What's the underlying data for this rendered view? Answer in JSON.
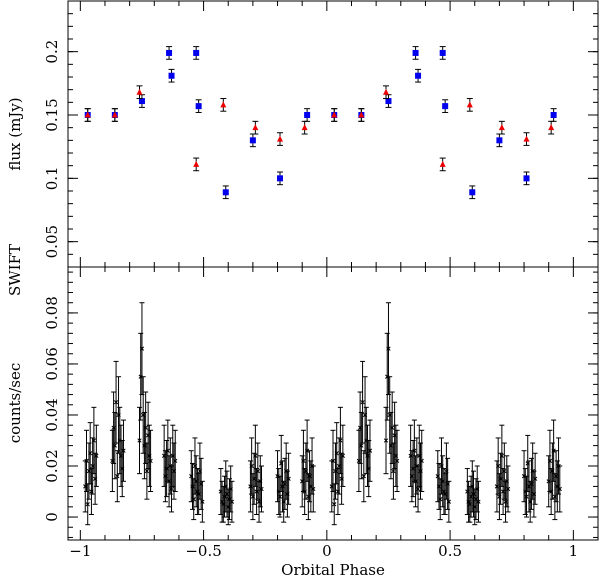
{
  "chart_data": [
    {
      "type": "scatter",
      "panel": "top",
      "ylabel": "flux (mJy)",
      "ylim": [
        0.03,
        0.24
      ],
      "yticks": [
        0.05,
        0.1,
        0.15,
        0.2
      ],
      "ytick_labels": [
        "0.05",
        "0.1",
        "0.15",
        "0.2"
      ],
      "xlim": [
        -1.05,
        1.1
      ],
      "series": [
        {
          "name": "blue squares",
          "color": "#0000ee",
          "marker": "square",
          "x": [
            -0.97,
            -0.86,
            -0.75,
            -0.64,
            -0.63,
            -0.53,
            -0.52,
            -0.41,
            -0.3,
            -0.19,
            -0.08,
            0.03,
            0.14,
            0.25,
            0.36,
            0.37,
            0.47,
            0.48,
            0.59,
            0.7,
            0.81,
            0.92
          ],
          "y": [
            0.15,
            0.15,
            0.161,
            0.199,
            0.181,
            0.199,
            0.157,
            0.089,
            0.13,
            0.1,
            0.15,
            0.15,
            0.15,
            0.161,
            0.199,
            0.181,
            0.199,
            0.157,
            0.089,
            0.13,
            0.1,
            0.15
          ],
          "err": 0.005
        },
        {
          "name": "red triangles",
          "color": "#ee0000",
          "marker": "triangle",
          "x": [
            -0.97,
            -0.86,
            -0.76,
            -0.53,
            -0.42,
            -0.29,
            -0.19,
            -0.09,
            0.03,
            0.14,
            0.24,
            0.47,
            0.58,
            0.71,
            0.81,
            0.91
          ],
          "y": [
            0.15,
            0.15,
            0.168,
            0.111,
            0.158,
            0.14,
            0.131,
            0.14,
            0.15,
            0.15,
            0.168,
            0.111,
            0.158,
            0.14,
            0.131,
            0.14
          ],
          "err": 0.005
        }
      ]
    },
    {
      "type": "scatter",
      "panel": "bottom",
      "panel_label": "SWIFT",
      "xlabel": "Orbital Phase",
      "ylabel": "counts/sec",
      "ylim": [
        -0.009,
        0.098
      ],
      "yticks": [
        0,
        0.02,
        0.04,
        0.06,
        0.08
      ],
      "ytick_labels": [
        "0",
        "0.02",
        "0.04",
        "0.06",
        "0.08"
      ],
      "xlim": [
        -1.05,
        1.1
      ],
      "xticks": [
        -1,
        -0.5,
        0,
        0.5,
        1
      ],
      "xtick_labels": [
        "−1",
        "−0.5",
        "0",
        "0.5",
        "1"
      ],
      "series": [
        {
          "name": "SWIFT count rate",
          "color": "#000000",
          "marker": "x",
          "x": [
            -0.98,
            -0.975,
            -0.97,
            -0.965,
            -0.96,
            -0.955,
            -0.95,
            -0.945,
            -0.94,
            -0.935,
            -0.87,
            -0.865,
            -0.86,
            -0.855,
            -0.85,
            -0.845,
            -0.84,
            -0.835,
            -0.83,
            -0.825,
            -0.76,
            -0.755,
            -0.75,
            -0.745,
            -0.74,
            -0.735,
            -0.73,
            -0.725,
            -0.72,
            -0.715,
            -0.66,
            -0.655,
            -0.65,
            -0.645,
            -0.64,
            -0.635,
            -0.63,
            -0.625,
            -0.62,
            -0.615,
            -0.55,
            -0.545,
            -0.54,
            -0.535,
            -0.53,
            -0.525,
            -0.52,
            -0.515,
            -0.51,
            -0.505,
            -0.43,
            -0.425,
            -0.42,
            -0.415,
            -0.41,
            -0.405,
            -0.4,
            -0.395,
            -0.39,
            -0.385,
            -0.31,
            -0.305,
            -0.3,
            -0.295,
            -0.29,
            -0.285,
            -0.28,
            -0.275,
            -0.27,
            -0.265,
            -0.2,
            -0.195,
            -0.19,
            -0.185,
            -0.18,
            -0.175,
            -0.17,
            -0.165,
            -0.16,
            -0.155,
            -0.1,
            -0.095,
            -0.09,
            -0.085,
            -0.08,
            -0.075,
            -0.07,
            -0.065,
            -0.06,
            -0.055,
            0.02,
            0.025,
            0.03,
            0.035,
            0.04,
            0.045,
            0.05,
            0.055,
            0.06,
            0.065,
            0.13,
            0.135,
            0.14,
            0.145,
            0.15,
            0.155,
            0.16,
            0.165,
            0.17,
            0.175,
            0.24,
            0.245,
            0.25,
            0.255,
            0.26,
            0.265,
            0.27,
            0.275,
            0.28,
            0.285,
            0.34,
            0.345,
            0.35,
            0.355,
            0.36,
            0.365,
            0.37,
            0.375,
            0.38,
            0.385,
            0.45,
            0.455,
            0.46,
            0.465,
            0.47,
            0.475,
            0.48,
            0.485,
            0.49,
            0.495,
            0.57,
            0.575,
            0.58,
            0.585,
            0.59,
            0.595,
            0.6,
            0.605,
            0.61,
            0.615,
            0.69,
            0.695,
            0.7,
            0.705,
            0.71,
            0.715,
            0.72,
            0.725,
            0.73,
            0.735,
            0.8,
            0.805,
            0.81,
            0.815,
            0.82,
            0.825,
            0.83,
            0.835,
            0.84,
            0.845,
            0.9,
            0.905,
            0.91,
            0.915,
            0.92,
            0.925,
            0.93,
            0.935,
            0.94,
            0.945
          ],
          "y": [
            0.012,
            0.022,
            0.005,
            0.018,
            0.025,
            0.01,
            0.02,
            0.03,
            0.015,
            0.024,
            0.022,
            0.035,
            0.028,
            0.045,
            0.016,
            0.04,
            0.03,
            0.024,
            0.019,
            0.026,
            0.03,
            0.055,
            0.066,
            0.04,
            0.028,
            0.035,
            0.018,
            0.032,
            0.024,
            0.022,
            0.024,
            0.016,
            0.019,
            0.026,
            0.014,
            0.02,
            0.011,
            0.024,
            0.018,
            0.022,
            0.016,
            0.012,
            0.007,
            0.02,
            0.014,
            0.01,
            0.009,
            0.018,
            0.013,
            0.006,
            0.01,
            0.006,
            0.005,
            0.008,
            0.012,
            0.009,
            0.004,
            0.007,
            0.011,
            0.006,
            0.012,
            0.02,
            0.008,
            0.015,
            0.024,
            0.01,
            0.018,
            0.006,
            0.014,
            0.011,
            0.016,
            0.01,
            0.008,
            0.021,
            0.012,
            0.006,
            0.013,
            0.018,
            0.009,
            0.015,
            0.014,
            0.022,
            0.01,
            0.018,
            0.026,
            0.008,
            0.016,
            0.012,
            0.02,
            0.011,
            0.012,
            0.022,
            0.005,
            0.018,
            0.025,
            0.01,
            0.02,
            0.03,
            0.015,
            0.024,
            0.022,
            0.035,
            0.028,
            0.045,
            0.016,
            0.04,
            0.03,
            0.024,
            0.019,
            0.026,
            0.03,
            0.055,
            0.066,
            0.04,
            0.028,
            0.035,
            0.018,
            0.032,
            0.024,
            0.022,
            0.024,
            0.016,
            0.019,
            0.026,
            0.014,
            0.02,
            0.011,
            0.024,
            0.018,
            0.022,
            0.016,
            0.012,
            0.007,
            0.02,
            0.014,
            0.01,
            0.009,
            0.018,
            0.013,
            0.006,
            0.01,
            0.006,
            0.005,
            0.008,
            0.012,
            0.009,
            0.004,
            0.007,
            0.011,
            0.006,
            0.012,
            0.02,
            0.008,
            0.015,
            0.024,
            0.01,
            0.018,
            0.006,
            0.014,
            0.011,
            0.016,
            0.01,
            0.008,
            0.021,
            0.012,
            0.006,
            0.013,
            0.018,
            0.009,
            0.015,
            0.014,
            0.022,
            0.01,
            0.018,
            0.026,
            0.008,
            0.016,
            0.012,
            0.02,
            0.011
          ],
          "err": [
            0.01,
            0.012,
            0.008,
            0.011,
            0.012,
            0.009,
            0.011,
            0.013,
            0.01,
            0.012,
            0.012,
            0.014,
            0.013,
            0.016,
            0.01,
            0.015,
            0.013,
            0.012,
            0.011,
            0.012,
            0.013,
            0.017,
            0.018,
            0.015,
            0.013,
            0.014,
            0.011,
            0.013,
            0.012,
            0.012,
            0.012,
            0.01,
            0.011,
            0.012,
            0.01,
            0.011,
            0.009,
            0.012,
            0.011,
            0.012,
            0.01,
            0.009,
            0.008,
            0.011,
            0.01,
            0.009,
            0.008,
            0.011,
            0.01,
            0.008,
            0.009,
            0.008,
            0.007,
            0.008,
            0.01,
            0.009,
            0.007,
            0.008,
            0.009,
            0.008,
            0.01,
            0.011,
            0.009,
            0.01,
            0.012,
            0.009,
            0.011,
            0.008,
            0.01,
            0.009,
            0.01,
            0.009,
            0.008,
            0.011,
            0.01,
            0.008,
            0.01,
            0.011,
            0.009,
            0.01,
            0.01,
            0.012,
            0.009,
            0.011,
            0.012,
            0.009,
            0.01,
            0.01,
            0.011,
            0.009,
            0.01,
            0.012,
            0.008,
            0.011,
            0.012,
            0.009,
            0.011,
            0.013,
            0.01,
            0.012,
            0.012,
            0.014,
            0.013,
            0.016,
            0.01,
            0.015,
            0.013,
            0.012,
            0.011,
            0.012,
            0.013,
            0.017,
            0.018,
            0.015,
            0.013,
            0.014,
            0.011,
            0.013,
            0.012,
            0.012,
            0.012,
            0.01,
            0.011,
            0.012,
            0.01,
            0.011,
            0.009,
            0.012,
            0.011,
            0.012,
            0.01,
            0.009,
            0.008,
            0.011,
            0.01,
            0.009,
            0.008,
            0.011,
            0.01,
            0.008,
            0.009,
            0.008,
            0.007,
            0.008,
            0.01,
            0.009,
            0.007,
            0.008,
            0.009,
            0.008,
            0.01,
            0.011,
            0.009,
            0.01,
            0.012,
            0.009,
            0.011,
            0.008,
            0.01,
            0.009,
            0.01,
            0.009,
            0.008,
            0.011,
            0.01,
            0.008,
            0.01,
            0.011,
            0.009,
            0.01,
            0.01,
            0.012,
            0.009,
            0.011,
            0.012,
            0.009,
            0.01,
            0.01,
            0.011,
            0.009
          ]
        }
      ]
    }
  ]
}
